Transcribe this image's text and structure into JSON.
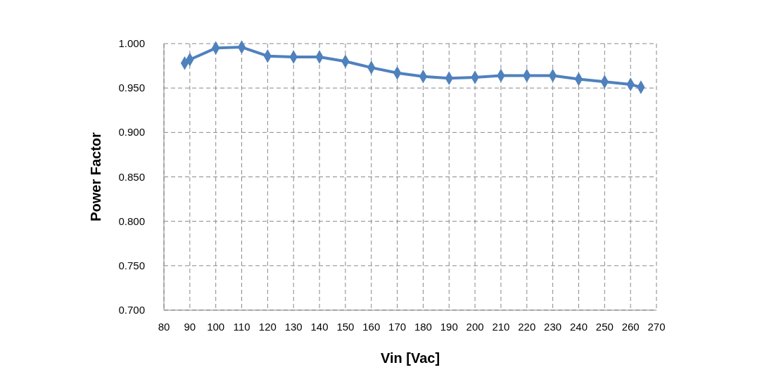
{
  "chart_data": {
    "type": "line",
    "xlabel": "Vin [Vac]",
    "ylabel": "Power Factor",
    "x": [
      88,
      90,
      100,
      110,
      120,
      130,
      140,
      150,
      160,
      170,
      180,
      190,
      200,
      210,
      220,
      230,
      240,
      250,
      260,
      264
    ],
    "series": [
      {
        "color": "#4f81bd",
        "values": [
          0.978,
          0.982,
          0.995,
          0.996,
          0.986,
          0.985,
          0.985,
          0.98,
          0.973,
          0.967,
          0.963,
          0.961,
          0.962,
          0.964,
          0.964,
          0.964,
          0.96,
          0.957,
          0.954,
          0.951
        ]
      }
    ],
    "xlim": [
      80,
      270
    ],
    "xticks": [
      80,
      90,
      100,
      110,
      120,
      130,
      140,
      150,
      160,
      170,
      180,
      190,
      200,
      210,
      220,
      230,
      240,
      250,
      260,
      270
    ],
    "ylim": [
      0.7,
      1.0
    ],
    "yticks": [
      {
        "value": 0.7,
        "label": "0.700"
      },
      {
        "value": 0.75,
        "label": "0.750"
      },
      {
        "value": 0.8,
        "label": "0.800"
      },
      {
        "value": 0.85,
        "label": "0.850"
      },
      {
        "value": 0.9,
        "label": "0.900"
      },
      {
        "value": 0.95,
        "label": "0.950"
      },
      {
        "value": 1.0,
        "label": "1.000"
      }
    ],
    "grid": true,
    "marker": "diamond",
    "line_style": "solid"
  }
}
